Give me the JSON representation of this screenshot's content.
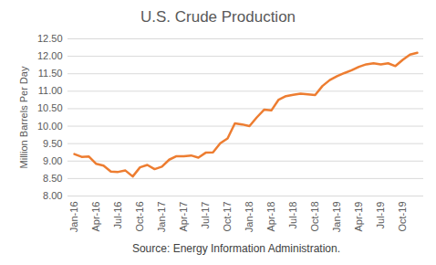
{
  "chart_data": {
    "type": "line",
    "title": "U.S. Crude Production",
    "ylabel": "Million Barrels Per Day",
    "caption": "Source: Energy Information Administration.",
    "color": "#ed7d31",
    "grid": true,
    "categories": [
      "Jan-16",
      null,
      null,
      "Apr-16",
      null,
      null,
      "Jul-16",
      null,
      null,
      "Oct-16",
      null,
      null,
      "Jan-17",
      null,
      null,
      "Apr-17",
      null,
      null,
      "Jul-17",
      null,
      null,
      "Oct-17",
      null,
      null,
      "Jan-18",
      null,
      null,
      "Apr-18",
      null,
      null,
      "Jul-18",
      null,
      null,
      "Oct-18",
      null,
      null,
      "Jan-19",
      null,
      null,
      "Apr-19",
      null,
      null,
      "Jul-19",
      null,
      null,
      "Oct-19",
      null,
      null
    ],
    "values": [
      9.2,
      9.12,
      9.13,
      8.92,
      8.87,
      8.7,
      8.69,
      8.73,
      8.56,
      8.82,
      8.89,
      8.77,
      8.84,
      9.04,
      9.14,
      9.14,
      9.16,
      9.1,
      9.24,
      9.25,
      9.51,
      9.65,
      10.08,
      10.05,
      10.0,
      10.25,
      10.47,
      10.45,
      10.76,
      10.86,
      10.9,
      10.93,
      10.91,
      10.89,
      11.15,
      11.32,
      11.43,
      11.52,
      11.6,
      11.7,
      11.77,
      11.8,
      11.77,
      11.8,
      11.72,
      11.9,
      12.05,
      12.1
    ],
    "ylim": [
      8.0,
      12.5
    ],
    "yticks": [
      {
        "value": 8.0,
        "label": "8.00"
      },
      {
        "value": 8.5,
        "label": "8.50"
      },
      {
        "value": 9.0,
        "label": "9.00"
      },
      {
        "value": 9.5,
        "label": "9.50"
      },
      {
        "value": 10.0,
        "label": "10.00"
      },
      {
        "value": 10.5,
        "label": "10.50"
      },
      {
        "value": 11.0,
        "label": "11.00"
      },
      {
        "value": 11.5,
        "label": "11.50"
      },
      {
        "value": 12.0,
        "label": "12.00"
      },
      {
        "value": 12.5,
        "label": "12.50"
      }
    ]
  }
}
